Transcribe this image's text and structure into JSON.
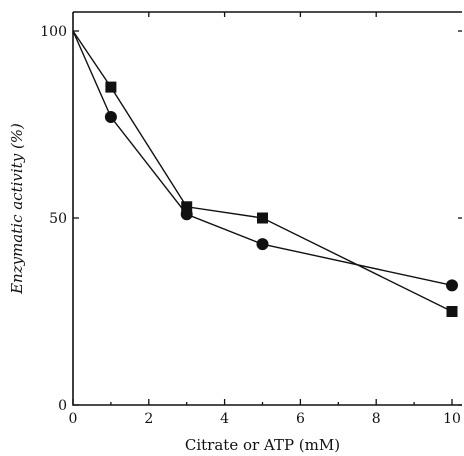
{
  "chart_data": {
    "type": "line",
    "title": "",
    "xlabel": "Citrate or ATP (mM)",
    "ylabel": "Enzymatic activity (%)",
    "xlim": [
      0,
      10
    ],
    "ylim": [
      0,
      100
    ],
    "x_ticks": [
      0,
      2,
      4,
      6,
      8,
      10
    ],
    "y_ticks": [
      0,
      50,
      100
    ],
    "grid": false,
    "legend": "none",
    "series": [
      {
        "marker": "circle",
        "x": [
          0,
          1,
          3,
          5,
          10
        ],
        "y": [
          100,
          77,
          51,
          43,
          32
        ]
      },
      {
        "marker": "square",
        "x": [
          0,
          1,
          3,
          5,
          10
        ],
        "y": [
          100,
          85,
          53,
          50,
          25
        ]
      }
    ]
  }
}
